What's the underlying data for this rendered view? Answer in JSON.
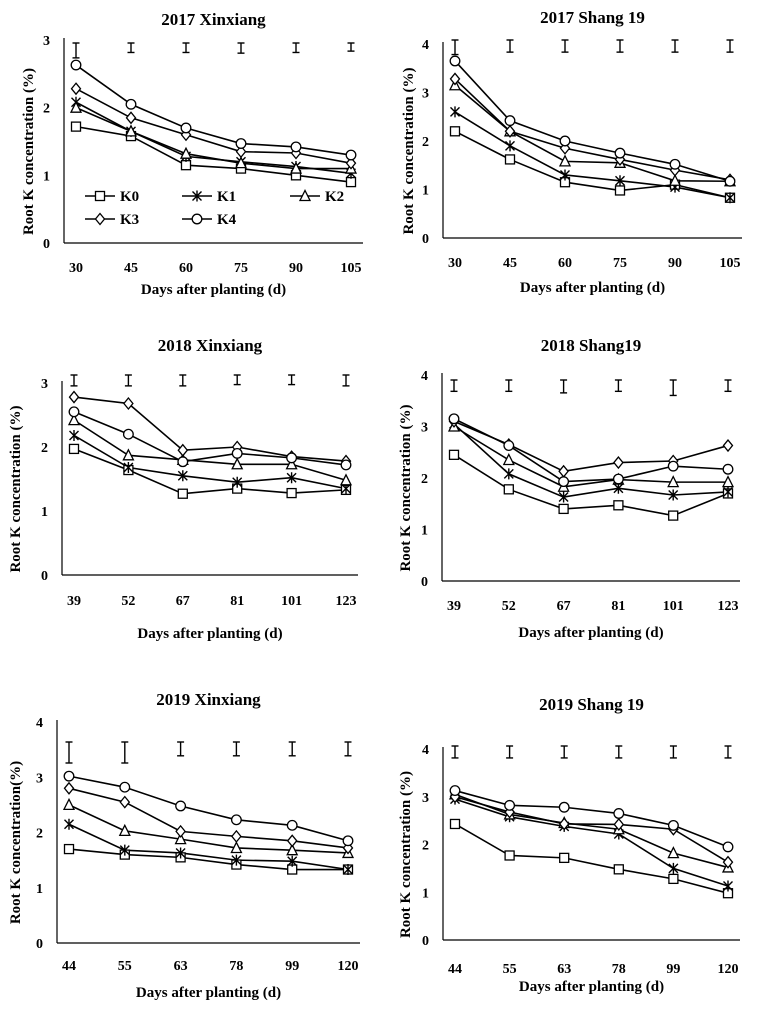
{
  "chart_data": [
    {
      "type": "line",
      "title": "2017 Xinxiang",
      "xlabel": "Days after planting (d)",
      "ylabel": "Root K concentration (%)",
      "ylim": [
        0,
        3
      ],
      "yticks": [
        "0",
        "1",
        "2",
        "3"
      ],
      "categories": [
        "30",
        "45",
        "60",
        "75",
        "90",
        "105"
      ],
      "series": [
        {
          "name": "K0",
          "values": [
            1.72,
            1.58,
            1.15,
            1.1,
            1.0,
            0.9
          ]
        },
        {
          "name": "K1",
          "values": [
            2.08,
            1.65,
            1.28,
            1.2,
            1.13,
            1.03
          ]
        },
        {
          "name": "K2",
          "values": [
            2.0,
            1.65,
            1.32,
            1.18,
            1.1,
            1.1
          ]
        },
        {
          "name": "K3",
          "values": [
            2.28,
            1.85,
            1.6,
            1.35,
            1.33,
            1.18
          ]
        },
        {
          "name": "K4",
          "values": [
            2.63,
            2.05,
            1.7,
            1.47,
            1.42,
            1.3
          ]
        }
      ],
      "error_bars": [
        0.22,
        0.14,
        0.14,
        0.15,
        0.14,
        0.12
      ]
    },
    {
      "type": "line",
      "title": "2017 Shang 19",
      "xlabel": "Days after planting (d)",
      "ylabel": "Root K concentration (%)",
      "ylim": [
        0,
        4
      ],
      "yticks": [
        "0",
        "1",
        "2",
        "3",
        "4"
      ],
      "categories": [
        "30",
        "45",
        "60",
        "75",
        "90",
        "105"
      ],
      "series": [
        {
          "name": "K0",
          "values": [
            2.2,
            1.62,
            1.15,
            0.98,
            1.1,
            0.83
          ]
        },
        {
          "name": "K1",
          "values": [
            2.6,
            1.9,
            1.3,
            1.18,
            1.05,
            0.83
          ]
        },
        {
          "name": "K2",
          "values": [
            3.15,
            2.2,
            1.58,
            1.55,
            1.18,
            1.17
          ]
        },
        {
          "name": "K3",
          "values": [
            3.28,
            2.2,
            1.85,
            1.62,
            1.4,
            1.2
          ]
        },
        {
          "name": "K4",
          "values": [
            3.65,
            2.42,
            2.0,
            1.75,
            1.52,
            1.17
          ]
        }
      ],
      "error_bars": [
        0.3,
        0.25,
        0.25,
        0.25,
        0.25,
        0.25
      ]
    },
    {
      "type": "line",
      "title": "2018 Xinxiang",
      "xlabel": "Days after planting (d)",
      "ylabel": "Root K concentration (%)",
      "ylim": [
        0,
        3
      ],
      "yticks": [
        "0",
        "1",
        "2",
        "3"
      ],
      "categories": [
        "39",
        "52",
        "67",
        "81",
        "101",
        "123"
      ],
      "series": [
        {
          "name": "K0",
          "values": [
            1.97,
            1.64,
            1.27,
            1.35,
            1.28,
            1.33
          ]
        },
        {
          "name": "K1",
          "values": [
            2.18,
            1.68,
            1.55,
            1.45,
            1.52,
            1.35
          ]
        },
        {
          "name": "K2",
          "values": [
            2.42,
            1.87,
            1.8,
            1.73,
            1.73,
            1.48
          ]
        },
        {
          "name": "K3",
          "values": [
            2.78,
            2.68,
            1.95,
            2.0,
            1.85,
            1.78
          ]
        },
        {
          "name": "K4",
          "values": [
            2.55,
            2.2,
            1.77,
            1.9,
            1.83,
            1.72
          ]
        }
      ],
      "error_bars": [
        0.17,
        0.17,
        0.17,
        0.15,
        0.15,
        0.17
      ]
    },
    {
      "type": "line",
      "title": "2018 Shang19",
      "xlabel": "Days after planting (d)",
      "ylabel": "Root K concentration (%)",
      "ylim": [
        0,
        4
      ],
      "yticks": [
        "0",
        "1",
        "2",
        "3",
        "4"
      ],
      "categories": [
        "39",
        "52",
        "67",
        "81",
        "101",
        "123"
      ],
      "series": [
        {
          "name": "K0",
          "values": [
            2.45,
            1.78,
            1.4,
            1.47,
            1.27,
            1.7
          ]
        },
        {
          "name": "K1",
          "values": [
            3.05,
            2.08,
            1.63,
            1.8,
            1.67,
            1.73
          ]
        },
        {
          "name": "K2",
          "values": [
            3.0,
            2.35,
            1.83,
            1.97,
            1.92,
            1.92
          ]
        },
        {
          "name": "K3",
          "values": [
            3.1,
            2.65,
            2.13,
            2.3,
            2.33,
            2.63
          ]
        },
        {
          "name": "K4",
          "values": [
            3.15,
            2.63,
            1.93,
            1.98,
            2.23,
            2.17
          ]
        }
      ],
      "error_bars": [
        0.22,
        0.22,
        0.25,
        0.22,
        0.3,
        0.22
      ]
    },
    {
      "type": "line",
      "title": "2019 Xinxiang",
      "xlabel": "Days after planting (d)",
      "ylabel": "Root K concentration(%)",
      "ylim": [
        0,
        4
      ],
      "yticks": [
        "0",
        "1",
        "2",
        "3",
        "4"
      ],
      "categories": [
        "44",
        "55",
        "63",
        "78",
        "99",
        "120"
      ],
      "series": [
        {
          "name": "K0",
          "values": [
            1.7,
            1.6,
            1.55,
            1.42,
            1.33,
            1.33
          ]
        },
        {
          "name": "K1",
          "values": [
            2.15,
            1.68,
            1.63,
            1.5,
            1.48,
            1.33
          ]
        },
        {
          "name": "K2",
          "values": [
            2.5,
            2.03,
            1.88,
            1.72,
            1.68,
            1.63
          ]
        },
        {
          "name": "K3",
          "values": [
            2.8,
            2.55,
            2.02,
            1.93,
            1.85,
            1.72
          ]
        },
        {
          "name": "K4",
          "values": [
            3.02,
            2.82,
            2.48,
            2.23,
            2.13,
            1.85
          ]
        }
      ],
      "error_bars": [
        0.38,
        0.38,
        0.25,
        0.25,
        0.25,
        0.25
      ]
    },
    {
      "type": "line",
      "title": "2019 Shang 19",
      "xlabel": "Days after planting (d)",
      "ylabel": "Root K concentration (%)",
      "ylim": [
        0,
        4
      ],
      "yticks": [
        "0",
        "1",
        "2",
        "3",
        "4"
      ],
      "categories": [
        "44",
        "55",
        "63",
        "78",
        "99",
        "120"
      ],
      "series": [
        {
          "name": "K0",
          "values": [
            2.43,
            1.77,
            1.72,
            1.48,
            1.28,
            0.98
          ]
        },
        {
          "name": "K1",
          "values": [
            2.95,
            2.58,
            2.38,
            2.22,
            1.5,
            1.13
          ]
        },
        {
          "name": "K2",
          "values": [
            3.05,
            2.63,
            2.45,
            2.32,
            1.82,
            1.52
          ]
        },
        {
          "name": "K3",
          "values": [
            3.0,
            2.68,
            2.43,
            2.42,
            2.32,
            1.63
          ]
        },
        {
          "name": "K4",
          "values": [
            3.13,
            2.82,
            2.78,
            2.65,
            2.4,
            1.95
          ]
        }
      ],
      "error_bars": [
        0.25,
        0.25,
        0.25,
        0.25,
        0.25,
        0.25
      ]
    }
  ],
  "legend": {
    "entries": [
      "K0",
      "K1",
      "K2",
      "K3",
      "K4"
    ],
    "markers": [
      "square",
      "star",
      "triangle",
      "diamond",
      "circle"
    ]
  }
}
